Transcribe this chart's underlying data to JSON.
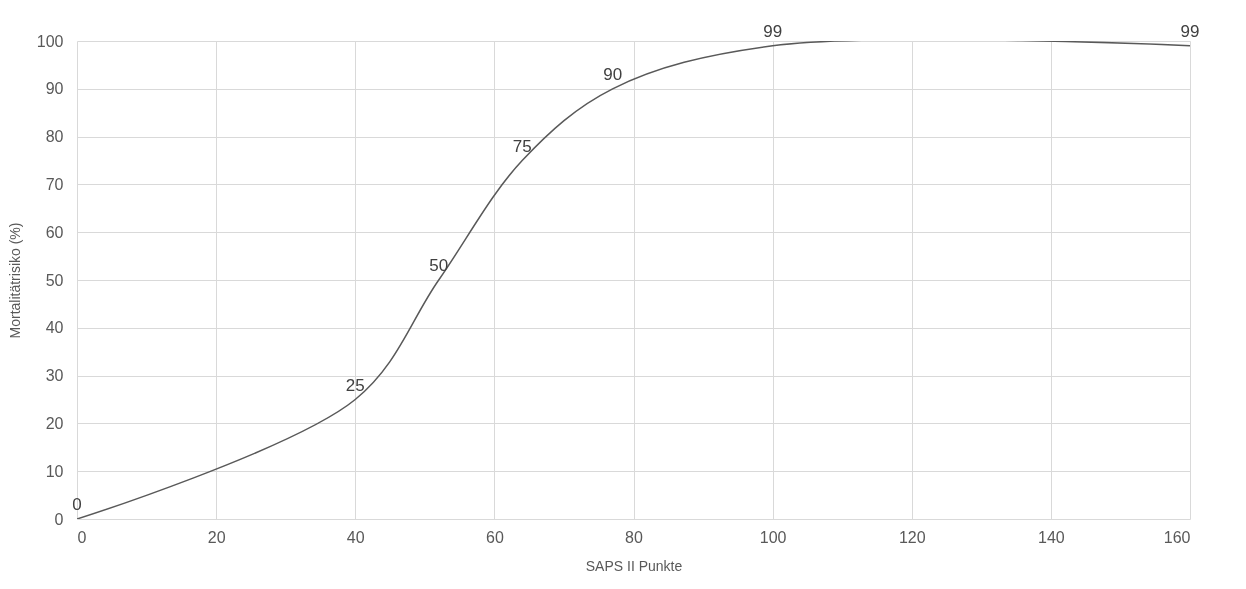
{
  "chart_data": {
    "type": "line",
    "xlabel": "SAPS II Punkte",
    "ylabel": "Mortalitätrisiko  (%)",
    "x": [
      0,
      40,
      52,
      64,
      77,
      100,
      160
    ],
    "series": [
      {
        "color": "#595959",
        "values": [
          0,
          25,
          50,
          75,
          90,
          99,
          99
        ]
      }
    ],
    "xlim": [
      0,
      160
    ],
    "xticks": [
      0,
      20,
      40,
      60,
      80,
      100,
      120,
      140,
      160
    ],
    "ylim": [
      0,
      100
    ],
    "yticks": [
      0,
      10,
      20,
      30,
      40,
      50,
      60,
      70,
      80,
      90,
      100
    ],
    "grid": true,
    "data_labels": true,
    "marker": "none",
    "line_style": "solid",
    "legend": false
  }
}
